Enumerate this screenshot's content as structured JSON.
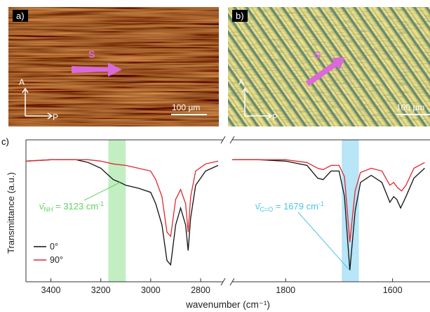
{
  "panel_a": {
    "label": "a)",
    "arrow_label": "S",
    "axis_vertical": "A",
    "axis_horizontal": "P",
    "scale_bar": "100 µm"
  },
  "panel_b": {
    "label": "b)",
    "arrow_label": "S",
    "axis_vertical": "A",
    "axis_horizontal": "P",
    "scale_bar": "100 µm"
  },
  "panel_c": {
    "label": "c)"
  },
  "chart_data": {
    "type": "line",
    "xlabel": "wavenumber (cm⁻¹)",
    "ylabel": "Transmittance (a.u.)",
    "x_ticks_left": [
      "3400",
      "3200",
      "3000",
      "2800"
    ],
    "x_ticks_right": [
      "1800",
      "1600"
    ],
    "legend": [
      "0°",
      "90°"
    ],
    "legend_position": "lower-left",
    "colors": {
      "series_0": "#111111",
      "series_90": "#e0282e",
      "nh_band": "#8fe08f",
      "co_band": "#7ed0f0",
      "nh_text": "#5fd35f",
      "co_text": "#4fc3e8"
    },
    "annotations": [
      {
        "symbol": "ν̄",
        "subscript": "NH",
        "text": " = 3123 cm",
        "sup": "-1",
        "wavenumber": 3123
      },
      {
        "symbol": "ν̄",
        "subscript": "C=O",
        "text": " = 1679 cm",
        "sup": "-1",
        "wavenumber": 1679
      }
    ],
    "series": [
      {
        "name": "0°",
        "left": [
          [
            3500,
            0.85
          ],
          [
            3400,
            0.86
          ],
          [
            3300,
            0.86
          ],
          [
            3250,
            0.84
          ],
          [
            3200,
            0.8
          ],
          [
            3150,
            0.72
          ],
          [
            3123,
            0.7
          ],
          [
            3100,
            0.68
          ],
          [
            3050,
            0.66
          ],
          [
            3000,
            0.63
          ],
          [
            2980,
            0.55
          ],
          [
            2955,
            0.4
          ],
          [
            2935,
            0.15
          ],
          [
            2920,
            0.12
          ],
          [
            2900,
            0.4
          ],
          [
            2880,
            0.52
          ],
          [
            2860,
            0.4
          ],
          [
            2850,
            0.22
          ],
          [
            2840,
            0.45
          ],
          [
            2820,
            0.68
          ],
          [
            2780,
            0.78
          ],
          [
            2730,
            0.82
          ]
        ],
        "right": [
          [
            1900,
            0.86
          ],
          [
            1850,
            0.86
          ],
          [
            1800,
            0.85
          ],
          [
            1760,
            0.82
          ],
          [
            1740,
            0.73
          ],
          [
            1730,
            0.72
          ],
          [
            1715,
            0.78
          ],
          [
            1700,
            0.78
          ],
          [
            1690,
            0.6
          ],
          [
            1680,
            0.08
          ],
          [
            1670,
            0.5
          ],
          [
            1660,
            0.7
          ],
          [
            1640,
            0.75
          ],
          [
            1620,
            0.7
          ],
          [
            1605,
            0.56
          ],
          [
            1598,
            0.6
          ],
          [
            1592,
            0.58
          ],
          [
            1585,
            0.52
          ],
          [
            1575,
            0.6
          ],
          [
            1560,
            0.73
          ],
          [
            1540,
            0.8
          ]
        ]
      },
      {
        "name": "90°",
        "left": [
          [
            3500,
            0.85
          ],
          [
            3400,
            0.86
          ],
          [
            3300,
            0.86
          ],
          [
            3250,
            0.86
          ],
          [
            3200,
            0.85
          ],
          [
            3150,
            0.83
          ],
          [
            3100,
            0.82
          ],
          [
            3050,
            0.8
          ],
          [
            3000,
            0.78
          ],
          [
            2980,
            0.72
          ],
          [
            2955,
            0.6
          ],
          [
            2935,
            0.35
          ],
          [
            2920,
            0.32
          ],
          [
            2900,
            0.58
          ],
          [
            2880,
            0.65
          ],
          [
            2860,
            0.55
          ],
          [
            2850,
            0.35
          ],
          [
            2840,
            0.6
          ],
          [
            2820,
            0.78
          ],
          [
            2780,
            0.83
          ],
          [
            2730,
            0.85
          ]
        ],
        "right": [
          [
            1900,
            0.86
          ],
          [
            1850,
            0.86
          ],
          [
            1800,
            0.86
          ],
          [
            1760,
            0.84
          ],
          [
            1740,
            0.8
          ],
          [
            1730,
            0.79
          ],
          [
            1715,
            0.82
          ],
          [
            1700,
            0.82
          ],
          [
            1690,
            0.74
          ],
          [
            1680,
            0.28
          ],
          [
            1670,
            0.64
          ],
          [
            1660,
            0.77
          ],
          [
            1640,
            0.8
          ],
          [
            1620,
            0.78
          ],
          [
            1605,
            0.68
          ],
          [
            1598,
            0.7
          ],
          [
            1590,
            0.66
          ],
          [
            1583,
            0.64
          ],
          [
            1575,
            0.68
          ],
          [
            1560,
            0.8
          ],
          [
            1540,
            0.84
          ]
        ]
      }
    ]
  }
}
